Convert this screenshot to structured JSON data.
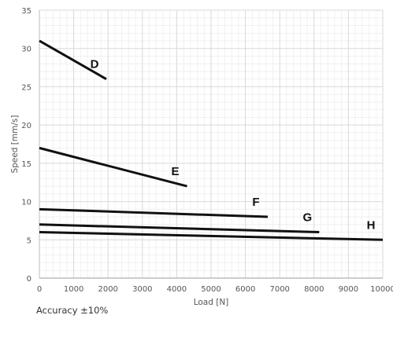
{
  "chart_data": {
    "type": "line",
    "xlabel": "Load [N]",
    "ylabel": "Speed [mm/s]",
    "xlim": [
      0,
      10000
    ],
    "ylim": [
      0,
      35
    ],
    "x_ticks": [
      0,
      1000,
      2000,
      3000,
      4000,
      5000,
      6000,
      7000,
      8000,
      9000,
      10000
    ],
    "y_ticks": [
      0,
      5,
      10,
      15,
      20,
      25,
      30,
      35
    ],
    "grid": true,
    "minor_grid": true,
    "series": [
      {
        "name": "D",
        "x": [
          0,
          1950
        ],
        "y": [
          31,
          26
        ]
      },
      {
        "name": "E",
        "x": [
          0,
          4300
        ],
        "y": [
          17,
          12
        ]
      },
      {
        "name": "F",
        "x": [
          0,
          6650
        ],
        "y": [
          9,
          8
        ]
      },
      {
        "name": "G",
        "x": [
          0,
          8150
        ],
        "y": [
          7,
          6
        ]
      },
      {
        "name": "H",
        "x": [
          0,
          10000
        ],
        "y": [
          6,
          5
        ]
      }
    ],
    "line_color": "#111111",
    "grid_color": "#d9d9d9",
    "minor_grid_color": "#eeeeee"
  },
  "note": "Accuracy ±10%"
}
